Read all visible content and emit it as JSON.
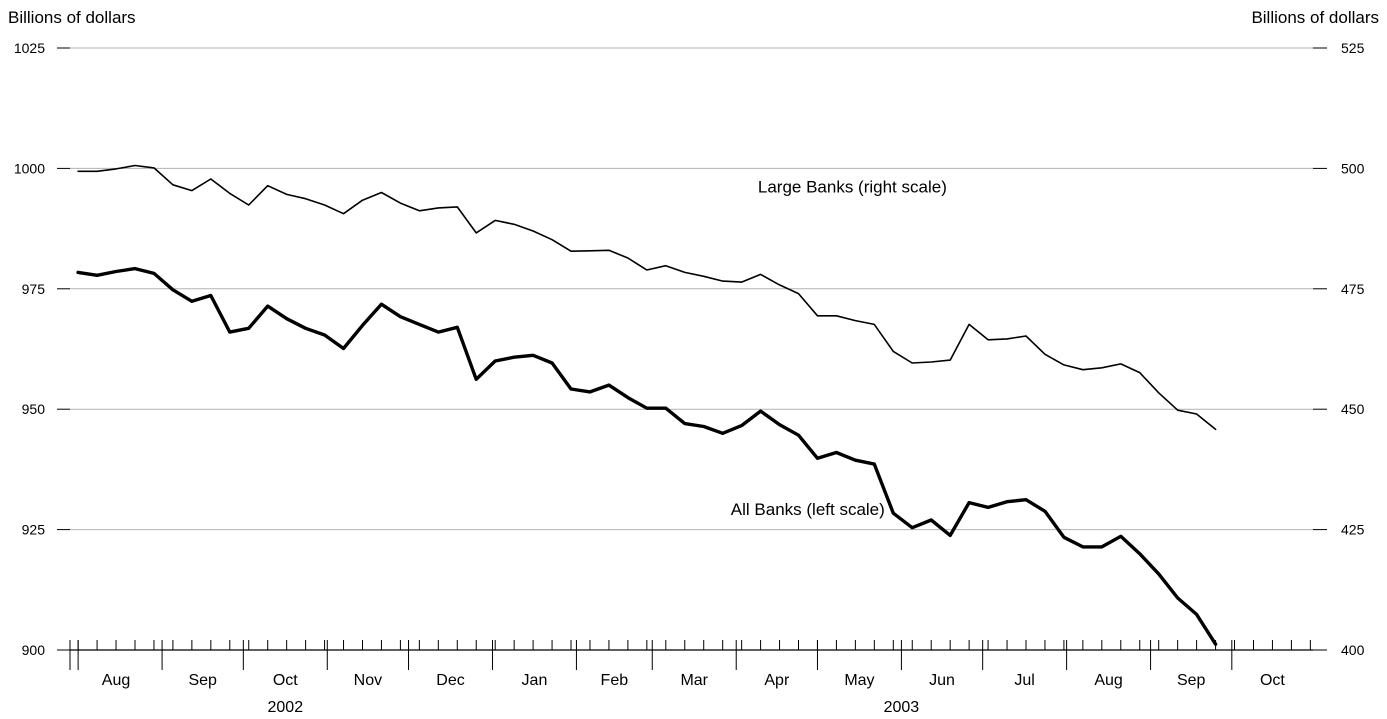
{
  "chart_data": {
    "type": "line",
    "left_axis": {
      "unit": "Billions of dollars",
      "ylim": [
        900,
        1025
      ],
      "ticks": [
        900,
        925,
        950,
        975,
        1000,
        1025
      ]
    },
    "right_axis": {
      "unit": "Billions of dollars",
      "ylim": [
        400,
        525
      ],
      "ticks": [
        400,
        425,
        450,
        475,
        500,
        525
      ]
    },
    "grid": true,
    "month_labels": [
      "Aug",
      "Sep",
      "Oct",
      "Nov",
      "Dec",
      "Jan",
      "Feb",
      "Mar",
      "Apr",
      "May",
      "Jun",
      "Jul",
      "Aug",
      "Sep",
      "Oct"
    ],
    "year_labels": [
      {
        "text": "2002",
        "month_index": 2
      },
      {
        "text": "2003",
        "month_index": 9.5
      }
    ],
    "x_start": "2002-07-29",
    "series": [
      {
        "name": "Large Banks (right scale)",
        "axis": "right",
        "stroke_width": 1.6,
        "label_anchor": {
          "date": "2003-04-09",
          "value": 495
        },
        "points": [
          [
            "2002-08-01",
            499.4
          ],
          [
            "2002-08-08",
            499.4
          ],
          [
            "2002-08-15",
            499.9
          ],
          [
            "2002-08-22",
            500.6
          ],
          [
            "2002-08-29",
            500.1
          ],
          [
            "2002-09-05",
            496.6
          ],
          [
            "2002-09-12",
            495.4
          ],
          [
            "2002-09-19",
            497.8
          ],
          [
            "2002-09-26",
            494.8
          ],
          [
            "2002-10-03",
            492.4
          ],
          [
            "2002-10-10",
            496.4
          ],
          [
            "2002-10-17",
            494.6
          ],
          [
            "2002-10-24",
            493.7
          ],
          [
            "2002-10-31",
            492.4
          ],
          [
            "2002-11-07",
            490.6
          ],
          [
            "2002-11-14",
            493.4
          ],
          [
            "2002-11-21",
            495.0
          ],
          [
            "2002-11-28",
            492.8
          ],
          [
            "2002-12-05",
            491.2
          ],
          [
            "2002-12-12",
            491.8
          ],
          [
            "2002-12-19",
            492.0
          ],
          [
            "2002-12-26",
            486.6
          ],
          [
            "2003-01-02",
            489.2
          ],
          [
            "2003-01-09",
            488.4
          ],
          [
            "2003-01-16",
            487.0
          ],
          [
            "2003-01-23",
            485.2
          ],
          [
            "2003-01-30",
            482.8
          ],
          [
            "2003-02-06",
            482.9
          ],
          [
            "2003-02-13",
            483.0
          ],
          [
            "2003-02-20",
            481.4
          ],
          [
            "2003-02-27",
            478.9
          ],
          [
            "2003-03-06",
            479.8
          ],
          [
            "2003-03-13",
            478.4
          ],
          [
            "2003-03-20",
            477.6
          ],
          [
            "2003-03-27",
            476.6
          ],
          [
            "2003-04-03",
            476.4
          ],
          [
            "2003-04-10",
            478.0
          ],
          [
            "2003-04-17",
            475.8
          ],
          [
            "2003-04-24",
            474.0
          ],
          [
            "2003-05-01",
            469.4
          ],
          [
            "2003-05-08",
            469.4
          ],
          [
            "2003-05-15",
            468.4
          ],
          [
            "2003-05-22",
            467.6
          ],
          [
            "2003-05-29",
            462.0
          ],
          [
            "2003-06-05",
            459.6
          ],
          [
            "2003-06-12",
            459.8
          ],
          [
            "2003-06-19",
            460.2
          ],
          [
            "2003-06-26",
            467.6
          ],
          [
            "2003-07-03",
            464.4
          ],
          [
            "2003-07-10",
            464.6
          ],
          [
            "2003-07-17",
            465.2
          ],
          [
            "2003-07-24",
            461.4
          ],
          [
            "2003-07-31",
            459.2
          ],
          [
            "2003-08-07",
            458.2
          ],
          [
            "2003-08-14",
            458.6
          ],
          [
            "2003-08-21",
            459.4
          ],
          [
            "2003-08-28",
            457.6
          ],
          [
            "2003-09-04",
            453.4
          ],
          [
            "2003-09-11",
            449.8
          ],
          [
            "2003-09-18",
            449.0
          ],
          [
            "2003-09-25",
            445.8
          ]
        ]
      },
      {
        "name": "All Banks (left scale)",
        "axis": "left",
        "stroke_width": 3.4,
        "label_anchor": {
          "date": "2003-03-30",
          "value": 928
        },
        "points": [
          [
            "2002-08-01",
            978.4
          ],
          [
            "2002-08-08",
            977.8
          ],
          [
            "2002-08-15",
            978.6
          ],
          [
            "2002-08-22",
            979.2
          ],
          [
            "2002-08-29",
            978.2
          ],
          [
            "2002-09-05",
            974.8
          ],
          [
            "2002-09-12",
            972.4
          ],
          [
            "2002-09-19",
            973.6
          ],
          [
            "2002-09-26",
            966.0
          ],
          [
            "2002-10-03",
            966.8
          ],
          [
            "2002-10-10",
            971.4
          ],
          [
            "2002-10-17",
            968.8
          ],
          [
            "2002-10-24",
            966.8
          ],
          [
            "2002-10-31",
            965.4
          ],
          [
            "2002-11-07",
            962.6
          ],
          [
            "2002-11-14",
            967.4
          ],
          [
            "2002-11-21",
            971.8
          ],
          [
            "2002-11-28",
            969.2
          ],
          [
            "2002-12-05",
            967.6
          ],
          [
            "2002-12-12",
            966.0
          ],
          [
            "2002-12-19",
            967.0
          ],
          [
            "2002-12-26",
            956.2
          ],
          [
            "2003-01-02",
            960.0
          ],
          [
            "2003-01-09",
            960.8
          ],
          [
            "2003-01-16",
            961.2
          ],
          [
            "2003-01-23",
            959.6
          ],
          [
            "2003-01-30",
            954.2
          ],
          [
            "2003-02-06",
            953.6
          ],
          [
            "2003-02-13",
            955.0
          ],
          [
            "2003-02-20",
            952.4
          ],
          [
            "2003-02-27",
            950.2
          ],
          [
            "2003-03-06",
            950.2
          ],
          [
            "2003-03-13",
            947.0
          ],
          [
            "2003-03-20",
            946.4
          ],
          [
            "2003-03-27",
            945.0
          ],
          [
            "2003-04-03",
            946.6
          ],
          [
            "2003-04-10",
            949.6
          ],
          [
            "2003-04-17",
            946.8
          ],
          [
            "2003-04-24",
            944.6
          ],
          [
            "2003-05-01",
            939.8
          ],
          [
            "2003-05-08",
            941.0
          ],
          [
            "2003-05-15",
            939.4
          ],
          [
            "2003-05-22",
            938.6
          ],
          [
            "2003-05-29",
            928.4
          ],
          [
            "2003-06-05",
            925.4
          ],
          [
            "2003-06-12",
            927.0
          ],
          [
            "2003-06-19",
            923.8
          ],
          [
            "2003-06-26",
            930.6
          ],
          [
            "2003-07-03",
            929.6
          ],
          [
            "2003-07-10",
            930.8
          ],
          [
            "2003-07-17",
            931.2
          ],
          [
            "2003-07-24",
            928.8
          ],
          [
            "2003-07-31",
            923.4
          ],
          [
            "2003-08-07",
            921.4
          ],
          [
            "2003-08-14",
            921.4
          ],
          [
            "2003-08-21",
            923.6
          ],
          [
            "2003-08-28",
            920.0
          ],
          [
            "2003-09-04",
            915.8
          ],
          [
            "2003-09-11",
            910.8
          ],
          [
            "2003-09-18",
            907.4
          ],
          [
            "2003-09-25",
            901.2
          ]
        ]
      }
    ]
  }
}
